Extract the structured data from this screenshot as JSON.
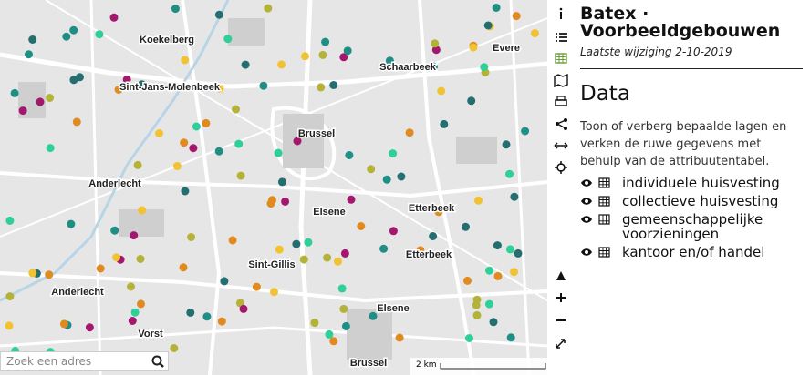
{
  "map": {
    "places": [
      "Koekelberg",
      "Sint-Jans-Molenbeek",
      "Brussel",
      "Schaarbeek",
      "Evere",
      "Anderlecht",
      "Elsene",
      "Etterbeek",
      "Etterbeek",
      "Sint-Gillis",
      "Anderlecht",
      "Elsene",
      "Vorst",
      "Brussel"
    ],
    "search_placeholder": "Zoek een adres",
    "scale": "2 km"
  },
  "panel": {
    "title": "Batex · Voorbeeldgebouwen",
    "subtitle": "Laatste wijziging 2-10-2019",
    "heading": "Data",
    "description": "Toon of verberg bepaalde lagen en verken de ruwe gegevens met behulp van de attribuutentabel.",
    "layers": [
      "individuele huisvesting",
      "collectieve huisvesting",
      "gemeenschappelijke voorzieningen",
      "kantoor en/of handel"
    ]
  }
}
